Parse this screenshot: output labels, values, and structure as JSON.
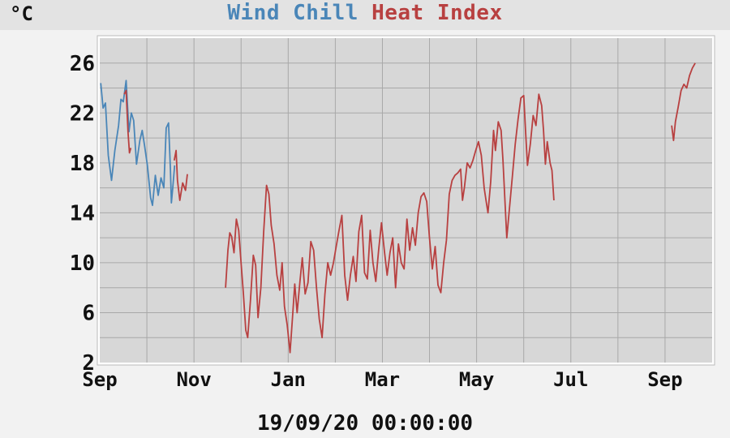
{
  "unit": "°C",
  "legend": {
    "wind_chill": "Wind Chill",
    "heat_index": "Heat Index"
  },
  "timestamp": "19/09/20 00:00:00",
  "colors": {
    "wind_chill": "#4a86b8",
    "heat_index": "#b84040",
    "plot_bg": "#d7d7d7",
    "grid": "#a8a8a8",
    "page_bg": "#f2f2f2"
  },
  "chart_data": {
    "type": "line",
    "title": "",
    "xlabel": "19/09/20 00:00:00",
    "ylabel": "°C",
    "x_unit": "months since start of Sep 2019",
    "xlim": [
      0,
      13
    ],
    "xticks": [
      {
        "value": 0,
        "label": "Sep"
      },
      {
        "value": 2,
        "label": "Nov"
      },
      {
        "value": 4,
        "label": "Jan"
      },
      {
        "value": 6,
        "label": "Mar"
      },
      {
        "value": 8,
        "label": "May"
      },
      {
        "value": 10,
        "label": "Jul"
      },
      {
        "value": 12,
        "label": "Sep"
      }
    ],
    "ylim": [
      2,
      28
    ],
    "yticks": [
      2,
      6,
      10,
      14,
      18,
      22,
      26
    ],
    "grid": true,
    "series": [
      {
        "name": "Wind Chill",
        "color": "#4a86b8",
        "segments": [
          [
            [
              0.02,
              24.4
            ],
            [
              0.07,
              22.4
            ],
            [
              0.12,
              22.8
            ],
            [
              0.18,
              18.6
            ],
            [
              0.25,
              16.6
            ],
            [
              0.32,
              19.0
            ],
            [
              0.4,
              21.0
            ],
            [
              0.45,
              23.1
            ],
            [
              0.5,
              22.9
            ],
            [
              0.56,
              24.6
            ],
            [
              0.62,
              20.5
            ],
            [
              0.67,
              22.0
            ],
            [
              0.72,
              21.4
            ],
            [
              0.78,
              17.9
            ],
            [
              0.85,
              19.8
            ],
            [
              0.9,
              20.6
            ],
            [
              0.95,
              19.4
            ],
            [
              1.01,
              17.8
            ],
            [
              1.08,
              15.2
            ],
            [
              1.12,
              14.6
            ],
            [
              1.18,
              17.0
            ],
            [
              1.24,
              15.4
            ],
            [
              1.3,
              16.8
            ],
            [
              1.36,
              16.0
            ],
            [
              1.41,
              20.8
            ],
            [
              1.46,
              21.2
            ],
            [
              1.5,
              17.5
            ],
            [
              1.52,
              14.8
            ],
            [
              1.55,
              16.0
            ],
            [
              1.59,
              17.8
            ]
          ]
        ]
      },
      {
        "name": "Heat Index",
        "color": "#b84040",
        "segments": [
          [
            [
              0.52,
              23.5
            ],
            [
              0.56,
              23.8
            ],
            [
              0.6,
              20.5
            ],
            [
              0.63,
              18.8
            ],
            [
              0.66,
              19.2
            ]
          ],
          [
            [
              1.58,
              18.2
            ],
            [
              1.62,
              19.0
            ],
            [
              1.65,
              16.6
            ],
            [
              1.7,
              15.0
            ],
            [
              1.76,
              16.4
            ],
            [
              1.82,
              15.8
            ],
            [
              1.86,
              17.1
            ]
          ],
          [
            [
              2.67,
              8.0
            ],
            [
              2.72,
              11.0
            ],
            [
              2.76,
              12.4
            ],
            [
              2.8,
              12.1
            ],
            [
              2.85,
              10.8
            ],
            [
              2.9,
              13.5
            ],
            [
              2.95,
              12.6
            ],
            [
              3.0,
              10.0
            ],
            [
              3.05,
              7.5
            ],
            [
              3.1,
              4.6
            ],
            [
              3.14,
              4.0
            ],
            [
              3.2,
              7.0
            ],
            [
              3.26,
              10.6
            ],
            [
              3.31,
              9.8
            ],
            [
              3.36,
              5.6
            ],
            [
              3.42,
              8.0
            ],
            [
              3.48,
              12.5
            ],
            [
              3.54,
              16.2
            ],
            [
              3.59,
              15.5
            ],
            [
              3.64,
              13.0
            ],
            [
              3.7,
              11.5
            ],
            [
              3.76,
              9.0
            ],
            [
              3.82,
              7.8
            ],
            [
              3.87,
              10.0
            ],
            [
              3.92,
              6.5
            ],
            [
              3.98,
              5.0
            ],
            [
              4.04,
              2.8
            ],
            [
              4.09,
              5.5
            ],
            [
              4.14,
              8.3
            ],
            [
              4.19,
              6.0
            ],
            [
              4.25,
              8.5
            ],
            [
              4.3,
              10.4
            ],
            [
              4.36,
              7.5
            ],
            [
              4.42,
              8.4
            ],
            [
              4.48,
              11.7
            ],
            [
              4.54,
              11.0
            ],
            [
              4.6,
              8.0
            ],
            [
              4.66,
              5.5
            ],
            [
              4.72,
              4.0
            ],
            [
              4.78,
              7.5
            ],
            [
              4.84,
              10.0
            ],
            [
              4.9,
              9.0
            ],
            [
              4.96,
              10.0
            ],
            [
              5.02,
              11.3
            ],
            [
              5.08,
              12.6
            ],
            [
              5.14,
              13.8
            ],
            [
              5.2,
              9.0
            ],
            [
              5.26,
              7.0
            ],
            [
              5.32,
              9.0
            ],
            [
              5.38,
              10.5
            ],
            [
              5.44,
              8.5
            ],
            [
              5.5,
              12.5
            ],
            [
              5.56,
              13.8
            ],
            [
              5.62,
              9.2
            ],
            [
              5.68,
              8.7
            ],
            [
              5.74,
              12.6
            ],
            [
              5.8,
              10.0
            ],
            [
              5.86,
              8.5
            ],
            [
              5.92,
              11.0
            ],
            [
              5.98,
              13.2
            ],
            [
              6.04,
              11.0
            ],
            [
              6.1,
              9.0
            ],
            [
              6.16,
              10.8
            ],
            [
              6.22,
              12.0
            ],
            [
              6.28,
              8.0
            ],
            [
              6.34,
              11.5
            ],
            [
              6.4,
              10.0
            ],
            [
              6.46,
              9.5
            ],
            [
              6.52,
              13.5
            ],
            [
              6.58,
              11.0
            ],
            [
              6.64,
              12.8
            ],
            [
              6.7,
              11.4
            ],
            [
              6.76,
              14.0
            ],
            [
              6.82,
              15.3
            ],
            [
              6.88,
              15.6
            ],
            [
              6.94,
              14.9
            ],
            [
              7.0,
              12.0
            ],
            [
              7.06,
              9.5
            ],
            [
              7.12,
              11.3
            ],
            [
              7.18,
              8.2
            ],
            [
              7.24,
              7.6
            ],
            [
              7.3,
              10.0
            ],
            [
              7.36,
              11.8
            ],
            [
              7.42,
              15.5
            ],
            [
              7.48,
              16.6
            ],
            [
              7.54,
              17.0
            ],
            [
              7.6,
              17.2
            ],
            [
              7.66,
              17.5
            ],
            [
              7.7,
              15.0
            ],
            [
              7.74,
              16.0
            ],
            [
              7.8,
              18.0
            ],
            [
              7.86,
              17.6
            ],
            [
              7.92,
              18.2
            ],
            [
              7.98,
              19.0
            ],
            [
              8.04,
              19.7
            ],
            [
              8.1,
              18.6
            ],
            [
              8.16,
              16.0
            ],
            [
              8.2,
              15.0
            ],
            [
              8.24,
              14.0
            ],
            [
              8.3,
              16.5
            ],
            [
              8.36,
              20.6
            ],
            [
              8.4,
              19.0
            ],
            [
              8.46,
              21.3
            ],
            [
              8.52,
              20.6
            ],
            [
              8.56,
              18.2
            ],
            [
              8.6,
              15.0
            ],
            [
              8.64,
              12.0
            ],
            [
              8.7,
              14.5
            ],
            [
              8.76,
              17.0
            ],
            [
              8.82,
              19.5
            ],
            [
              8.88,
              21.5
            ],
            [
              8.94,
              23.2
            ],
            [
              9.0,
              23.4
            ],
            [
              9.04,
              20.5
            ],
            [
              9.08,
              17.8
            ],
            [
              9.14,
              19.5
            ],
            [
              9.2,
              21.8
            ],
            [
              9.26,
              21.0
            ],
            [
              9.32,
              23.5
            ],
            [
              9.38,
              22.6
            ],
            [
              9.42,
              20.6
            ],
            [
              9.46,
              17.9
            ],
            [
              9.5,
              19.7
            ],
            [
              9.56,
              18.0
            ],
            [
              9.6,
              17.4
            ],
            [
              9.64,
              15.0
            ]
          ],
          [
            [
              12.14,
              21.0
            ],
            [
              12.18,
              19.8
            ],
            [
              12.22,
              21.3
            ],
            [
              12.28,
              22.5
            ],
            [
              12.34,
              23.8
            ],
            [
              12.4,
              24.3
            ],
            [
              12.46,
              24.0
            ],
            [
              12.52,
              25.0
            ],
            [
              12.58,
              25.6
            ],
            [
              12.64,
              26.0
            ]
          ]
        ]
      }
    ]
  }
}
